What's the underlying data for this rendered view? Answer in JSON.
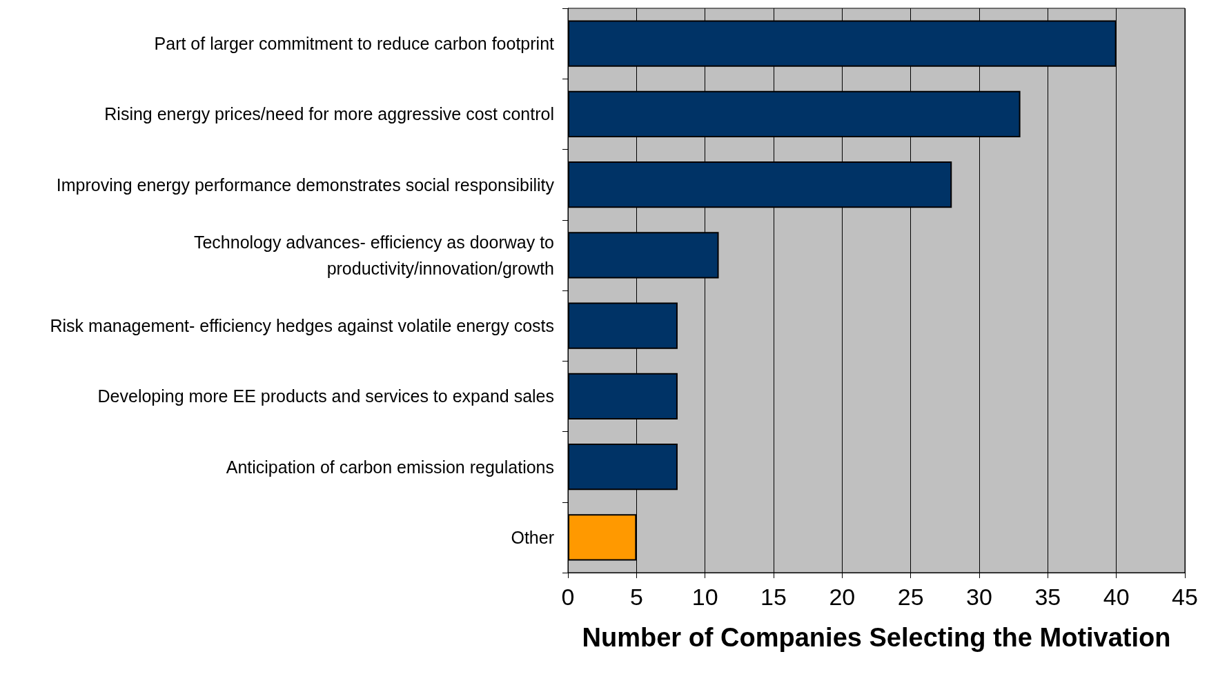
{
  "chart_data": {
    "type": "bar",
    "orientation": "horizontal",
    "xlabel": "Number of Companies Selecting the Motivation",
    "categories": [
      "Part of larger commitment to reduce carbon footprint",
      "Rising energy prices/need for more aggressive cost control",
      "Improving energy performance demonstrates social responsibility",
      "Technology advances- efficiency as doorway to\nproductivity/innovation/growth",
      "Risk management- efficiency hedges against volatile energy costs",
      "Developing more EE products and services to expand sales",
      "Anticipation of carbon emission regulations",
      "Other"
    ],
    "values": [
      40,
      33,
      28,
      11,
      8,
      8,
      8,
      5
    ],
    "colors": [
      "#003366",
      "#003366",
      "#003366",
      "#003366",
      "#003366",
      "#003366",
      "#003366",
      "#ff9900"
    ],
    "xlim": [
      0,
      45
    ],
    "xticks": [
      0,
      5,
      10,
      15,
      20,
      25,
      30,
      35,
      40,
      45
    ],
    "grid": "x"
  }
}
